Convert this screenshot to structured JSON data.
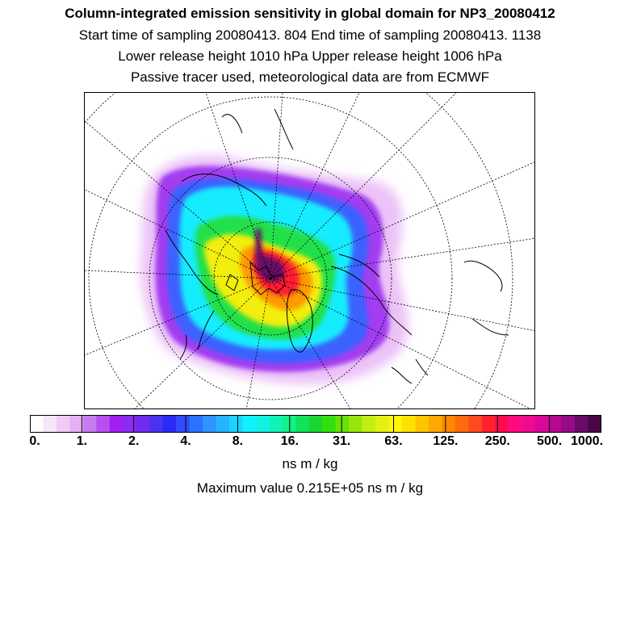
{
  "header": {
    "title": "Column-integrated emission sensitivity in global domain for NP3_20080412",
    "sampling": "Start time of sampling 20080413.   804      End time of sampling 20080413.  1138",
    "release": "Lower release height 1010 hPa        Upper release height 1006 hPa",
    "tracer": "Passive tracer used, meteorological data are from ECMWF"
  },
  "legend": {
    "labels": [
      "0.",
      "1.",
      "2.",
      "4.",
      "8.",
      "16.",
      "31.",
      "63.",
      "125.",
      "250.",
      "500.",
      "1000."
    ],
    "colors": [
      "#ffffff",
      "#f6e6fb",
      "#efccf8",
      "#e6b0f4",
      "#c77bf0",
      "#b84ff0",
      "#a020ef",
      "#8a2cf2",
      "#6f2bf0",
      "#4b32f0",
      "#2a2cf5",
      "#2f4cff",
      "#2a73ff",
      "#2f94ff",
      "#25b4ff",
      "#18d4ff",
      "#10f2ff",
      "#10f2e6",
      "#10f2b8",
      "#10f28a",
      "#10e25a",
      "#1ad632",
      "#33e00f",
      "#6ae00a",
      "#98e60c",
      "#c2ee10",
      "#e4f010",
      "#fff50a",
      "#ffe000",
      "#ffc400",
      "#ffa800",
      "#ff8800",
      "#ff6a10",
      "#ff4a20",
      "#ff2030",
      "#ff0a50",
      "#ff0a80",
      "#f00a90",
      "#d8089a",
      "#b8068f",
      "#960c88",
      "#6a0a68",
      "#4a0646"
    ],
    "units": "ns m / kg",
    "max_value": "Maximum value  0.215E+05 ns m / kg"
  },
  "map": {
    "description_free": true,
    "grid_color": "#000000",
    "plume_colors": {
      "outer": "#e8b6f6",
      "violet": "#a83cf0",
      "blue": "#3a5cff",
      "cyan": "#10eeff",
      "green": "#22e04a",
      "yellow": "#f4f010",
      "orange": "#ff9a00",
      "red": "#ff1a30",
      "core": "#6a0a68"
    }
  }
}
